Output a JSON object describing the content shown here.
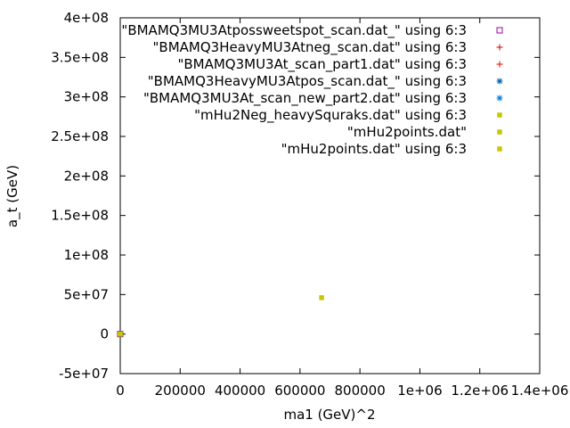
{
  "chart_data": {
    "type": "scatter",
    "xlabel": "ma1 (GeV)^2",
    "ylabel": "a_t (GeV)",
    "xlim": [
      0,
      1400000
    ],
    "ylim": [
      -50000000,
      400000000
    ],
    "x_ticks": [
      {
        "value": 0,
        "label": "0"
      },
      {
        "value": 200000,
        "label": "200000"
      },
      {
        "value": 400000,
        "label": "400000"
      },
      {
        "value": 600000,
        "label": "600000"
      },
      {
        "value": 800000,
        "label": "800000"
      },
      {
        "value": 1000000,
        "label": "1e+06"
      },
      {
        "value": 1200000,
        "label": "1.2e+06"
      },
      {
        "value": 1400000,
        "label": "1.4e+06"
      }
    ],
    "y_ticks": [
      {
        "value": -50000000,
        "label": "-5e+07"
      },
      {
        "value": 0,
        "label": "0"
      },
      {
        "value": 50000000,
        "label": "5e+07"
      },
      {
        "value": 100000000,
        "label": "1e+08"
      },
      {
        "value": 150000000,
        "label": "1.5e+08"
      },
      {
        "value": 200000000,
        "label": "2e+08"
      },
      {
        "value": 250000000,
        "label": "2.5e+08"
      },
      {
        "value": 300000000,
        "label": "3e+08"
      },
      {
        "value": 350000000,
        "label": "3.5e+08"
      },
      {
        "value": 400000000,
        "label": "4e+08"
      }
    ],
    "legend_position": "top-right",
    "series": [
      {
        "name": "\"BMAMQ3MU3Atpossweetspot_scan.dat_\" using 6:3",
        "marker": "open-square",
        "color": "#a000a0",
        "points": [
          [
            0,
            0
          ]
        ]
      },
      {
        "name": "\"BMAMQ3HeavyMU3Atneg_scan.dat\" using 6:3",
        "marker": "plus",
        "color": "#cc0000",
        "points": [
          [
            0,
            0
          ]
        ]
      },
      {
        "name": "\"BMAMQ3MU3At_scan_part1.dat\" using 6:3",
        "marker": "plus",
        "color": "#ee0000",
        "points": [
          [
            0,
            0
          ]
        ]
      },
      {
        "name": "\"BMAMQ3HeavyMU3Atpos_scan.dat_\" using 6:3",
        "marker": "star",
        "color": "#0060ad",
        "points": [
          [
            0,
            0
          ]
        ]
      },
      {
        "name": "\"BMAMQ3MU3At_scan_new_part2.dat\" using 6:3",
        "marker": "star",
        "color": "#0080e0",
        "points": [
          [
            0,
            0
          ]
        ]
      },
      {
        "name": "\"mHu2Neg_heavySquraks.dat\" using 6:3",
        "marker": "filled-square",
        "color": "#c8c800",
        "points": [
          [
            0,
            0
          ]
        ]
      },
      {
        "name": "\"mHu2points.dat\"",
        "marker": "filled-square",
        "color": "#c8c800",
        "points": [
          [
            672000,
            46000000
          ]
        ]
      },
      {
        "name": "\"mHu2points.dat\" using 6:3",
        "marker": "filled-square",
        "color": "#c8c800",
        "points": [
          [
            0,
            0
          ]
        ]
      }
    ]
  }
}
